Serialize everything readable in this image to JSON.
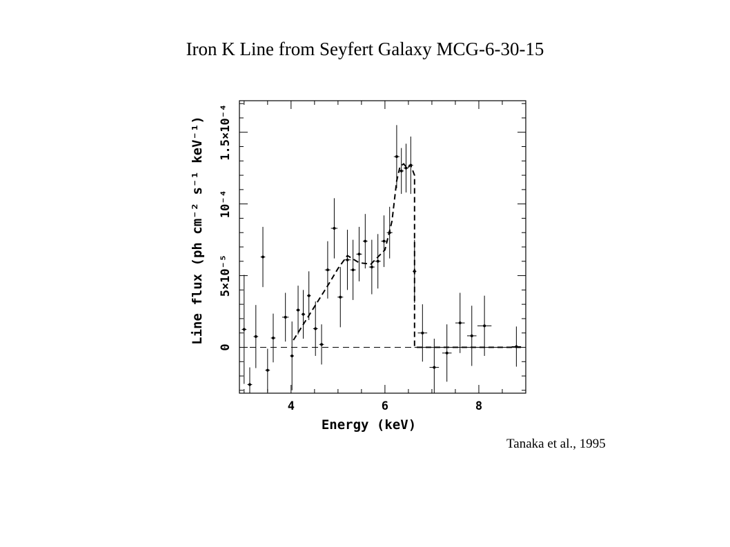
{
  "slide": {
    "title": "Iron K Line from Seyfert Galaxy MCG-6-30-15",
    "citation": "Tanaka et al., 1995"
  },
  "chart_data": {
    "type": "scatter",
    "title": "Iron K Line from Seyfert Galaxy MCG-6-30-15",
    "xlabel": "Energy (keV)",
    "ylabel": "Line flux (ph cm⁻² s⁻¹ keV⁻¹)",
    "xlim": [
      2.9,
      9.0
    ],
    "ylim": [
      -3.2e-05,
      0.000172
    ],
    "x_ticks": [
      4,
      6,
      8
    ],
    "y_ticks": [
      {
        "value": 0,
        "label": "0"
      },
      {
        "value": 5e-05,
        "label": "5×10⁻⁵"
      },
      {
        "value": 0.0001,
        "label": "10⁻⁴"
      },
      {
        "value": 0.00015,
        "label": "1.5×10⁻⁴"
      }
    ],
    "points": [
      {
        "x": 3.0,
        "y": 1.25e-05,
        "xerr": 0.05,
        "yerr": 3.8e-05
      },
      {
        "x": 3.12,
        "y": -2.6e-05,
        "xerr": 0.05,
        "yerr": 1.2e-05
      },
      {
        "x": 3.25,
        "y": 7.5e-06,
        "xerr": 0.05,
        "yerr": 2.2e-05
      },
      {
        "x": 3.4,
        "y": 6.3e-05,
        "xerr": 0.05,
        "yerr": 2.1e-05
      },
      {
        "x": 3.5,
        "y": -1.6e-05,
        "xerr": 0.05,
        "yerr": 1.5e-05
      },
      {
        "x": 3.62,
        "y": 6.5e-06,
        "xerr": 0.05,
        "yerr": 1.7e-05
      },
      {
        "x": 3.88,
        "y": 2.1e-05,
        "xerr": 0.07,
        "yerr": 1.7e-05
      },
      {
        "x": 4.02,
        "y": -6e-06,
        "xerr": 0.04,
        "yerr": 2.4e-05
      },
      {
        "x": 4.15,
        "y": 2.6e-05,
        "xerr": 0.04,
        "yerr": 1.7e-05
      },
      {
        "x": 4.26,
        "y": 2.3e-05,
        "xerr": 0.04,
        "yerr": 1.7e-05
      },
      {
        "x": 4.38,
        "y": 3.6e-05,
        "xerr": 0.04,
        "yerr": 1.7e-05
      },
      {
        "x": 4.52,
        "y": 1.3e-05,
        "xerr": 0.05,
        "yerr": 1.9e-05
      },
      {
        "x": 4.65,
        "y": 2e-06,
        "xerr": 0.05,
        "yerr": 1.4e-05
      },
      {
        "x": 4.78,
        "y": 5.4e-05,
        "xerr": 0.06,
        "yerr": 2e-05
      },
      {
        "x": 4.92,
        "y": 8.3e-05,
        "xerr": 0.07,
        "yerr": 2.1e-05
      },
      {
        "x": 5.05,
        "y": 3.5e-05,
        "xerr": 0.06,
        "yerr": 2.1e-05
      },
      {
        "x": 5.2,
        "y": 6.1e-05,
        "xerr": 0.07,
        "yerr": 2.1e-05
      },
      {
        "x": 5.32,
        "y": 5.4e-05,
        "xerr": 0.06,
        "yerr": 2.1e-05
      },
      {
        "x": 5.45,
        "y": 6.5e-05,
        "xerr": 0.06,
        "yerr": 1.9e-05
      },
      {
        "x": 5.58,
        "y": 7.4e-05,
        "xerr": 0.05,
        "yerr": 1.9e-05
      },
      {
        "x": 5.72,
        "y": 5.6e-05,
        "xerr": 0.06,
        "yerr": 1.9e-05
      },
      {
        "x": 5.85,
        "y": 6e-05,
        "xerr": 0.06,
        "yerr": 1.9e-05
      },
      {
        "x": 5.98,
        "y": 7.4e-05,
        "xerr": 0.06,
        "yerr": 1.8e-05
      },
      {
        "x": 6.1,
        "y": 8e-05,
        "xerr": 0.06,
        "yerr": 1.8e-05
      },
      {
        "x": 6.25,
        "y": 0.000133,
        "xerr": 0.06,
        "yerr": 2.2e-05
      },
      {
        "x": 6.35,
        "y": 0.000123,
        "xerr": 0.05,
        "yerr": 1.6e-05
      },
      {
        "x": 6.45,
        "y": 0.000125,
        "xerr": 0.05,
        "yerr": 1.7e-05
      },
      {
        "x": 6.55,
        "y": 0.000127,
        "xerr": 0.05,
        "yerr": 2e-05
      },
      {
        "x": 6.63,
        "y": 5.3e-05,
        "xerr": 0.04,
        "yerr": 2.2e-05
      },
      {
        "x": 6.8,
        "y": 1e-05,
        "xerr": 0.1,
        "yerr": 2e-05
      },
      {
        "x": 7.05,
        "y": -1.4e-05,
        "xerr": 0.1,
        "yerr": 2e-05
      },
      {
        "x": 7.32,
        "y": -4e-06,
        "xerr": 0.1,
        "yerr": 2e-05
      },
      {
        "x": 7.6,
        "y": 1.7e-05,
        "xerr": 0.1,
        "yerr": 2.1e-05
      },
      {
        "x": 7.85,
        "y": 8e-06,
        "xerr": 0.1,
        "yerr": 2.1e-05
      },
      {
        "x": 8.12,
        "y": 1.5e-05,
        "xerr": 0.15,
        "yerr": 2.1e-05
      },
      {
        "x": 8.8,
        "y": 5e-07,
        "xerr": 0.1,
        "yerr": 1.4e-05
      }
    ],
    "model_curve": {
      "style": "dashed",
      "x": [
        4.05,
        4.8,
        5.0,
        5.2,
        5.45,
        5.7,
        6.0,
        6.15,
        6.25,
        6.32,
        6.4,
        6.47,
        6.55,
        6.63,
        6.63,
        8.95
      ],
      "y": [
        5e-06,
        4.4e-05,
        5.5e-05,
        6.4e-05,
        5.9e-05,
        5.8e-05,
        6.8e-05,
        8.8e-05,
        0.000116,
        0.000126,
        0.000128,
        0.000125,
        0.000127,
        0.00012,
        0,
        0
      ]
    },
    "baseline": {
      "y": 0,
      "style": "dashed",
      "x": [
        2.9,
        6.63
      ]
    },
    "grid": false,
    "legend": "none"
  }
}
